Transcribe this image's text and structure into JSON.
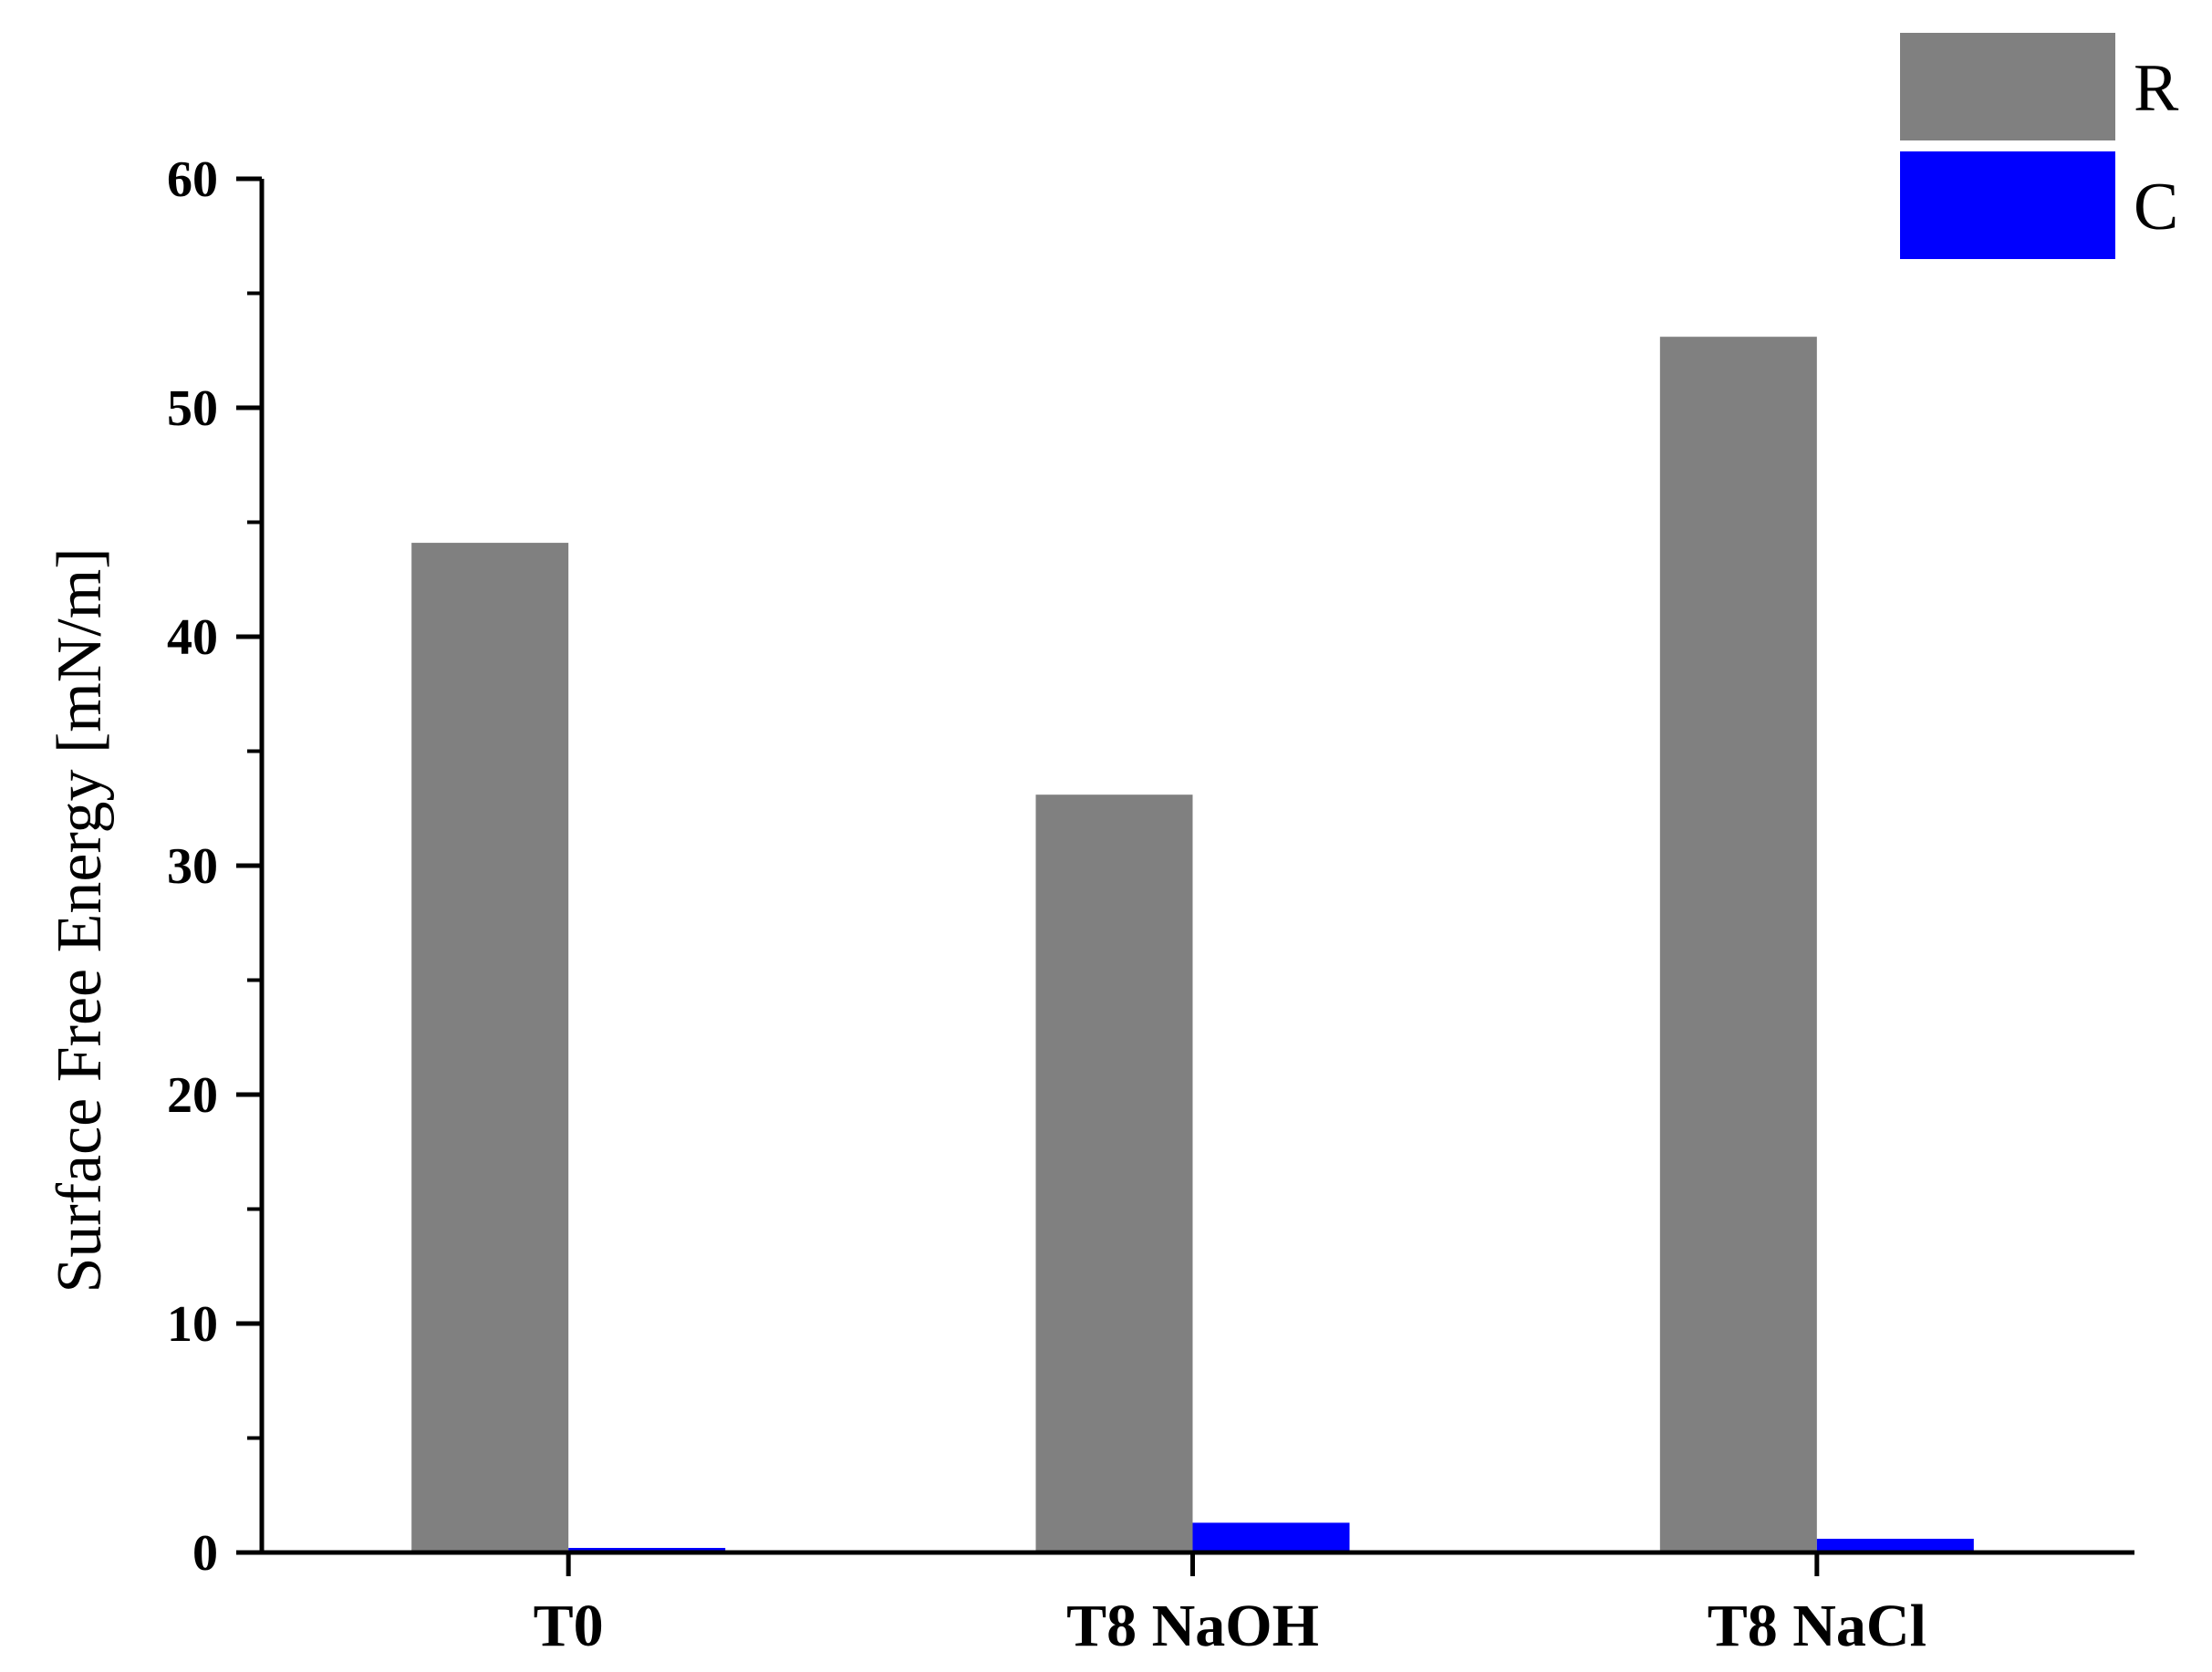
{
  "chart_data": {
    "type": "bar",
    "title": "",
    "xlabel": "",
    "ylabel": "Surface Free Energy [mN/m]",
    "categories": [
      "T0",
      "T8 NaOH",
      "T8 NaCl"
    ],
    "series": [
      {
        "name": "R",
        "color": "#808080",
        "values": [
          44.1,
          33.1,
          53.1
        ]
      },
      {
        "name": "C",
        "color": "#0000ff",
        "values": [
          0.2,
          1.3,
          0.6
        ]
      }
    ],
    "ylim": [
      0,
      60
    ],
    "yticks": [
      0,
      10,
      20,
      30,
      40,
      50,
      60
    ],
    "grid": false,
    "legend_position": "top-right"
  }
}
